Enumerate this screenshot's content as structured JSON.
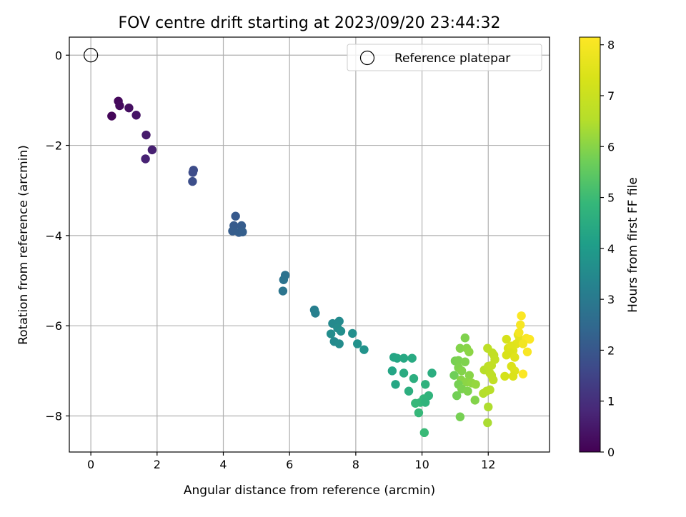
{
  "chart_data": {
    "type": "scatter",
    "title": "FOV centre drift starting at 2023/09/20 23:44:32",
    "xlabel": "Angular distance from reference (arcmin)",
    "ylabel": "Rotation from reference (arcmin)",
    "xlim": [
      -0.65,
      13.85
    ],
    "ylim": [
      -8.8,
      0.4
    ],
    "xticks": [
      "0",
      "2",
      "4",
      "6",
      "8",
      "10",
      "12"
    ],
    "yticks": [
      "0",
      "−2",
      "−4",
      "−6",
      "−8"
    ],
    "grid": true,
    "legend": {
      "placement": "top-right",
      "label": "Reference platepar"
    },
    "reference_point": {
      "x": 0,
      "y": 0
    },
    "colorbar": {
      "label": "Hours from first FF file",
      "range": [
        0,
        8.15
      ],
      "ticks": [
        "0",
        "1",
        "2",
        "3",
        "4",
        "5",
        "6",
        "7",
        "8"
      ],
      "colormap": "viridis"
    },
    "points": [
      {
        "x": 0.83,
        "y": -1.02,
        "h": 0.15
      },
      {
        "x": 0.87,
        "y": -1.12,
        "h": 0.2
      },
      {
        "x": 1.15,
        "y": -1.17,
        "h": 0.3
      },
      {
        "x": 0.63,
        "y": -1.35,
        "h": 0.1
      },
      {
        "x": 1.37,
        "y": -1.33,
        "h": 0.4
      },
      {
        "x": 1.67,
        "y": -1.77,
        "h": 0.55
      },
      {
        "x": 1.85,
        "y": -2.1,
        "h": 0.65
      },
      {
        "x": 1.65,
        "y": -2.3,
        "h": 0.7
      },
      {
        "x": 3.1,
        "y": -2.55,
        "h": 1.7
      },
      {
        "x": 3.08,
        "y": -2.6,
        "h": 1.72
      },
      {
        "x": 3.07,
        "y": -2.8,
        "h": 1.75
      },
      {
        "x": 4.37,
        "y": -3.57,
        "h": 2.05
      },
      {
        "x": 4.32,
        "y": -3.78,
        "h": 2.1
      },
      {
        "x": 4.55,
        "y": -3.78,
        "h": 2.12
      },
      {
        "x": 4.28,
        "y": -3.9,
        "h": 2.15
      },
      {
        "x": 4.47,
        "y": -3.93,
        "h": 2.17
      },
      {
        "x": 4.58,
        "y": -3.92,
        "h": 2.2
      },
      {
        "x": 5.87,
        "y": -4.88,
        "h": 2.75
      },
      {
        "x": 5.82,
        "y": -4.98,
        "h": 2.8
      },
      {
        "x": 5.8,
        "y": -5.23,
        "h": 2.85
      },
      {
        "x": 6.75,
        "y": -5.65,
        "h": 3.15
      },
      {
        "x": 6.78,
        "y": -5.72,
        "h": 3.2
      },
      {
        "x": 7.3,
        "y": -5.95,
        "h": 3.45
      },
      {
        "x": 7.5,
        "y": -5.9,
        "h": 3.5
      },
      {
        "x": 7.45,
        "y": -6.05,
        "h": 3.55
      },
      {
        "x": 7.55,
        "y": -6.12,
        "h": 3.6
      },
      {
        "x": 7.25,
        "y": -6.18,
        "h": 3.58
      },
      {
        "x": 7.9,
        "y": -6.17,
        "h": 3.65
      },
      {
        "x": 7.35,
        "y": -6.35,
        "h": 3.5
      },
      {
        "x": 7.5,
        "y": -6.4,
        "h": 3.55
      },
      {
        "x": 8.05,
        "y": -6.4,
        "h": 3.7
      },
      {
        "x": 8.25,
        "y": -6.53,
        "h": 3.75
      },
      {
        "x": 9.15,
        "y": -6.7,
        "h": 4.3
      },
      {
        "x": 9.25,
        "y": -6.72,
        "h": 4.35
      },
      {
        "x": 9.45,
        "y": -6.72,
        "h": 4.4
      },
      {
        "x": 9.7,
        "y": -6.72,
        "h": 4.45
      },
      {
        "x": 9.1,
        "y": -7.0,
        "h": 4.3
      },
      {
        "x": 9.45,
        "y": -7.05,
        "h": 4.5
      },
      {
        "x": 10.3,
        "y": -7.05,
        "h": 4.55
      },
      {
        "x": 9.75,
        "y": -7.17,
        "h": 4.6
      },
      {
        "x": 9.2,
        "y": -7.3,
        "h": 4.35
      },
      {
        "x": 10.1,
        "y": -7.3,
        "h": 4.7
      },
      {
        "x": 9.6,
        "y": -7.45,
        "h": 4.6
      },
      {
        "x": 10.2,
        "y": -7.55,
        "h": 4.75
      },
      {
        "x": 10.05,
        "y": -7.62,
        "h": 4.8
      },
      {
        "x": 9.95,
        "y": -7.7,
        "h": 4.85
      },
      {
        "x": 9.8,
        "y": -7.72,
        "h": 4.9
      },
      {
        "x": 10.1,
        "y": -7.7,
        "h": 4.75
      },
      {
        "x": 9.9,
        "y": -7.93,
        "h": 4.9
      },
      {
        "x": 10.07,
        "y": -8.37,
        "h": 4.95
      },
      {
        "x": 11.3,
        "y": -6.27,
        "h": 5.9
      },
      {
        "x": 11.15,
        "y": -6.5,
        "h": 5.95
      },
      {
        "x": 11.35,
        "y": -6.5,
        "h": 6.0
      },
      {
        "x": 11.42,
        "y": -6.58,
        "h": 6.05
      },
      {
        "x": 11.0,
        "y": -6.78,
        "h": 5.8
      },
      {
        "x": 11.1,
        "y": -6.77,
        "h": 5.85
      },
      {
        "x": 11.3,
        "y": -6.8,
        "h": 5.9
      },
      {
        "x": 11.1,
        "y": -6.93,
        "h": 5.9
      },
      {
        "x": 11.2,
        "y": -7.0,
        "h": 5.95
      },
      {
        "x": 10.97,
        "y": -7.1,
        "h": 5.7
      },
      {
        "x": 11.43,
        "y": -7.1,
        "h": 6.0
      },
      {
        "x": 11.18,
        "y": -7.2,
        "h": 6.0
      },
      {
        "x": 11.35,
        "y": -7.25,
        "h": 6.05
      },
      {
        "x": 11.5,
        "y": -7.27,
        "h": 6.1
      },
      {
        "x": 11.62,
        "y": -7.3,
        "h": 6.15
      },
      {
        "x": 11.1,
        "y": -7.3,
        "h": 5.8
      },
      {
        "x": 11.2,
        "y": -7.4,
        "h": 5.85
      },
      {
        "x": 11.38,
        "y": -7.45,
        "h": 5.9
      },
      {
        "x": 11.05,
        "y": -7.55,
        "h": 5.75
      },
      {
        "x": 11.6,
        "y": -7.65,
        "h": 5.95
      },
      {
        "x": 11.15,
        "y": -8.02,
        "h": 5.8
      },
      {
        "x": 11.88,
        "y": -6.98,
        "h": 6.6
      },
      {
        "x": 12.0,
        "y": -6.9,
        "h": 6.7
      },
      {
        "x": 12.1,
        "y": -6.88,
        "h": 6.8
      },
      {
        "x": 11.98,
        "y": -6.5,
        "h": 6.7
      },
      {
        "x": 12.12,
        "y": -6.6,
        "h": 6.75
      },
      {
        "x": 12.17,
        "y": -6.65,
        "h": 6.8
      },
      {
        "x": 12.2,
        "y": -6.75,
        "h": 6.85
      },
      {
        "x": 12.05,
        "y": -7.05,
        "h": 6.7
      },
      {
        "x": 12.1,
        "y": -7.1,
        "h": 6.75
      },
      {
        "x": 12.15,
        "y": -7.2,
        "h": 6.8
      },
      {
        "x": 11.85,
        "y": -7.5,
        "h": 6.5
      },
      {
        "x": 11.95,
        "y": -7.45,
        "h": 6.55
      },
      {
        "x": 12.05,
        "y": -7.42,
        "h": 6.6
      },
      {
        "x": 12.0,
        "y": -7.8,
        "h": 6.45
      },
      {
        "x": 11.98,
        "y": -8.15,
        "h": 6.4
      },
      {
        "x": 12.55,
        "y": -6.3,
        "h": 7.3
      },
      {
        "x": 12.6,
        "y": -6.5,
        "h": 7.35
      },
      {
        "x": 12.75,
        "y": -6.55,
        "h": 7.45
      },
      {
        "x": 12.9,
        "y": -6.2,
        "h": 7.6
      },
      {
        "x": 12.95,
        "y": -6.3,
        "h": 7.65
      },
      {
        "x": 12.85,
        "y": -6.4,
        "h": 7.55
      },
      {
        "x": 12.7,
        "y": -6.45,
        "h": 7.5
      },
      {
        "x": 12.65,
        "y": -6.6,
        "h": 7.4
      },
      {
        "x": 12.55,
        "y": -6.65,
        "h": 7.35
      },
      {
        "x": 12.8,
        "y": -6.7,
        "h": 7.5
      },
      {
        "x": 12.7,
        "y": -6.9,
        "h": 7.4
      },
      {
        "x": 12.8,
        "y": -7.0,
        "h": 7.45
      },
      {
        "x": 12.5,
        "y": -7.12,
        "h": 7.25
      },
      {
        "x": 12.75,
        "y": -7.12,
        "h": 7.4
      },
      {
        "x": 13.0,
        "y": -5.78,
        "h": 8.1
      },
      {
        "x": 12.97,
        "y": -5.98,
        "h": 8.0
      },
      {
        "x": 12.93,
        "y": -6.15,
        "h": 7.95
      },
      {
        "x": 13.15,
        "y": -6.28,
        "h": 8.05
      },
      {
        "x": 13.25,
        "y": -6.3,
        "h": 8.1
      },
      {
        "x": 13.05,
        "y": -6.4,
        "h": 7.9
      },
      {
        "x": 13.18,
        "y": -6.58,
        "h": 8.05
      },
      {
        "x": 13.05,
        "y": -7.07,
        "h": 8.1
      }
    ]
  }
}
